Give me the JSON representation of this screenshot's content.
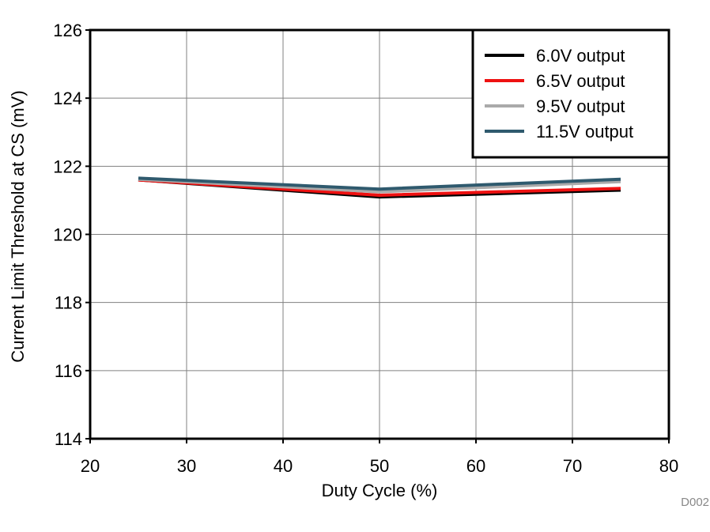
{
  "chart_data": {
    "type": "line",
    "title": "",
    "xlabel": "Duty Cycle (%)",
    "ylabel": "Current Limit Threshold at CS (mV)",
    "xlim": [
      20,
      80
    ],
    "ylim": [
      114,
      126
    ],
    "xticks": [
      20,
      30,
      40,
      50,
      60,
      70,
      80
    ],
    "yticks": [
      114,
      116,
      118,
      120,
      122,
      124,
      126
    ],
    "grid": true,
    "legend_position": "top-right",
    "x": [
      25,
      50,
      75
    ],
    "series": [
      {
        "name": "6.0V output",
        "color": "#000000",
        "values": [
          121.6,
          121.1,
          121.3
        ]
      },
      {
        "name": "6.5V output",
        "color": "#ee1111",
        "values": [
          121.6,
          121.15,
          121.35
        ]
      },
      {
        "name": "9.5V output",
        "color": "#aaaaaa",
        "values": [
          121.62,
          121.25,
          121.55
        ]
      },
      {
        "name": "11.5V output",
        "color": "#2f5a6e",
        "values": [
          121.65,
          121.33,
          121.62
        ]
      }
    ],
    "figure_code": "D002"
  }
}
